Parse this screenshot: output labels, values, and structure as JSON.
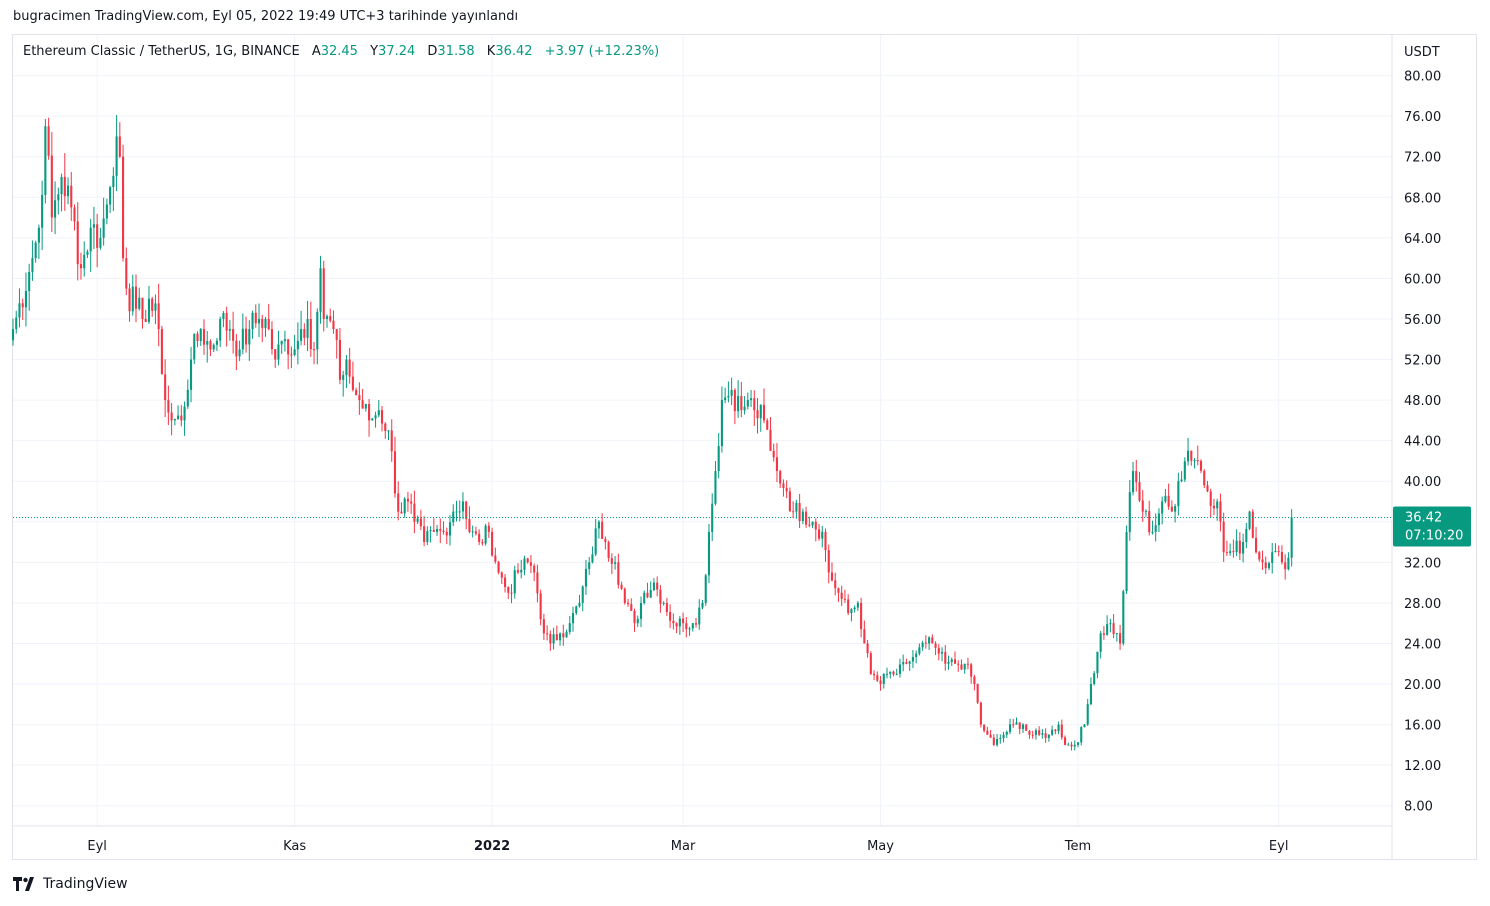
{
  "header": {
    "published": "bugracimen TradingView.com, Eyl 05, 2022 19:49 UTC+3 tarihinde yayınlandı"
  },
  "legend": {
    "symbol": "Ethereum Classic / TetherUS, 1G, BINANCE",
    "open_label": "A",
    "open": "32.45",
    "high_label": "Y",
    "high": "37.24",
    "low_label": "D",
    "low": "31.58",
    "close_label": "K",
    "close": "36.42",
    "change": "+3.97 (+12.23%)"
  },
  "price_badge": {
    "price": "36.42",
    "countdown": "07:10:20"
  },
  "footer": {
    "logo_text": "TradingView",
    "logo_icon": "tradingview-logo-icon"
  },
  "colors": {
    "up": "#089981",
    "down": "#f23645",
    "grid": "#f0f3fa",
    "badge": "#089981"
  },
  "chart_data": {
    "type": "candlestick",
    "currency": "USDT",
    "ylim": [
      6,
      84
    ],
    "y_ticks": [
      "80.00",
      "76.00",
      "72.00",
      "68.00",
      "64.00",
      "60.00",
      "56.00",
      "52.00",
      "48.00",
      "44.00",
      "40.00",
      "36.00",
      "32.00",
      "28.00",
      "24.00",
      "20.00",
      "16.00",
      "12.00",
      "8.00"
    ],
    "x_ticks": [
      {
        "label": "Eyl",
        "day": 0,
        "bold": false
      },
      {
        "label": "Kas",
        "day": 61,
        "bold": false
      },
      {
        "label": "2022",
        "day": 122,
        "bold": true
      },
      {
        "label": "Mar",
        "day": 181,
        "bold": false
      },
      {
        "label": "May",
        "day": 242,
        "bold": false
      },
      {
        "label": "Tem",
        "day": 303,
        "bold": false
      },
      {
        "label": "Eyl",
        "day": 365,
        "bold": false
      }
    ],
    "day_range": [
      -26,
      400
    ],
    "last_price": 36.42,
    "anchors": [
      [
        -26,
        55
      ],
      [
        -20,
        62
      ],
      [
        -18,
        65
      ],
      [
        -16,
        75
      ],
      [
        -14,
        66
      ],
      [
        -11,
        70
      ],
      [
        -8,
        67
      ],
      [
        -5,
        61
      ],
      [
        -2,
        65
      ],
      [
        1,
        64
      ],
      [
        4,
        69
      ],
      [
        6,
        74
      ],
      [
        7,
        72
      ],
      [
        8,
        62
      ],
      [
        9,
        59
      ],
      [
        12,
        57
      ],
      [
        14,
        56
      ],
      [
        16,
        58
      ],
      [
        19,
        55
      ],
      [
        21,
        48
      ],
      [
        23,
        46
      ],
      [
        26,
        46
      ],
      [
        29,
        52
      ],
      [
        32,
        55
      ],
      [
        35,
        53
      ],
      [
        38,
        56
      ],
      [
        41,
        55
      ],
      [
        44,
        53
      ],
      [
        47,
        55
      ],
      [
        50,
        56
      ],
      [
        52,
        56
      ],
      [
        55,
        52
      ],
      [
        58,
        54
      ],
      [
        61,
        53
      ],
      [
        63,
        55
      ],
      [
        65,
        56
      ],
      [
        67,
        53
      ],
      [
        69,
        61
      ],
      [
        70,
        56
      ],
      [
        73,
        55
      ],
      [
        75,
        50
      ],
      [
        77,
        52
      ],
      [
        79,
        49
      ],
      [
        81,
        48
      ],
      [
        84,
        46
      ],
      [
        87,
        47
      ],
      [
        90,
        45
      ],
      [
        93,
        37
      ],
      [
        96,
        38
      ],
      [
        98,
        36
      ],
      [
        101,
        34
      ],
      [
        104,
        35
      ],
      [
        107,
        35
      ],
      [
        110,
        37
      ],
      [
        113,
        38
      ],
      [
        115,
        35
      ],
      [
        118,
        34
      ],
      [
        121,
        35
      ],
      [
        124,
        31
      ],
      [
        127,
        29
      ],
      [
        130,
        31
      ],
      [
        133,
        32
      ],
      [
        135,
        31
      ],
      [
        138,
        25
      ],
      [
        140,
        24
      ],
      [
        143,
        25
      ],
      [
        146,
        26
      ],
      [
        149,
        28
      ],
      [
        152,
        32
      ],
      [
        155,
        36
      ],
      [
        157,
        34
      ],
      [
        160,
        32
      ],
      [
        163,
        28
      ],
      [
        166,
        26
      ],
      [
        169,
        29
      ],
      [
        172,
        30
      ],
      [
        175,
        28
      ],
      [
        178,
        26
      ],
      [
        181,
        26
      ],
      [
        184,
        26
      ],
      [
        187,
        28
      ],
      [
        189,
        35
      ],
      [
        191,
        41
      ],
      [
        193,
        48
      ],
      [
        196,
        49
      ],
      [
        199,
        47
      ],
      [
        201,
        48
      ],
      [
        203,
        47
      ],
      [
        206,
        46
      ],
      [
        208,
        43
      ],
      [
        210,
        41
      ],
      [
        213,
        39
      ],
      [
        215,
        37
      ],
      [
        218,
        37
      ],
      [
        221,
        36
      ],
      [
        224,
        35
      ],
      [
        226,
        31
      ],
      [
        229,
        29
      ],
      [
        232,
        27
      ],
      [
        235,
        28
      ],
      [
        237,
        24
      ],
      [
        239,
        21
      ],
      [
        242,
        20
      ],
      [
        244,
        21
      ],
      [
        247,
        21
      ],
      [
        250,
        22
      ],
      [
        253,
        23
      ],
      [
        256,
        24
      ],
      [
        258,
        24
      ],
      [
        260,
        23
      ],
      [
        262,
        22
      ],
      [
        265,
        22
      ],
      [
        268,
        22
      ],
      [
        271,
        20
      ],
      [
        273,
        16
      ],
      [
        275,
        15
      ],
      [
        277,
        14
      ],
      [
        280,
        15
      ],
      [
        283,
        16
      ],
      [
        286,
        16
      ],
      [
        288,
        15
      ],
      [
        291,
        15
      ],
      [
        294,
        15
      ],
      [
        297,
        16
      ],
      [
        299,
        14
      ],
      [
        302,
        14
      ],
      [
        305,
        16
      ],
      [
        307,
        20
      ],
      [
        310,
        25
      ],
      [
        313,
        26
      ],
      [
        316,
        24
      ],
      [
        318,
        35
      ],
      [
        320,
        41
      ],
      [
        323,
        37
      ],
      [
        326,
        35
      ],
      [
        329,
        38
      ],
      [
        332,
        37
      ],
      [
        334,
        40
      ],
      [
        337,
        43
      ],
      [
        340,
        42
      ],
      [
        343,
        39
      ],
      [
        346,
        38
      ],
      [
        348,
        33
      ],
      [
        351,
        33
      ],
      [
        354,
        34
      ],
      [
        356,
        37
      ],
      [
        358,
        33
      ],
      [
        360,
        32
      ],
      [
        363,
        33
      ],
      [
        366,
        32
      ],
      [
        368,
        32.45
      ],
      [
        369,
        36.42
      ]
    ]
  }
}
